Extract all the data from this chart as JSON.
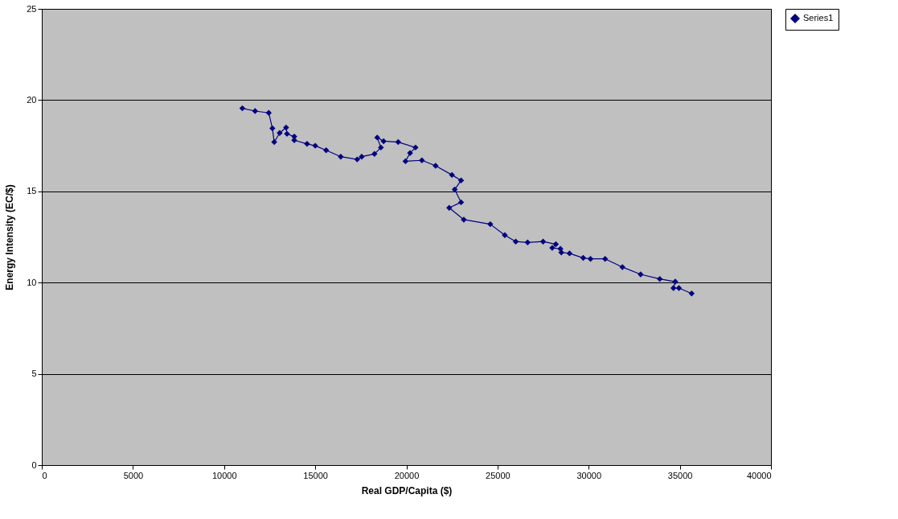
{
  "chart_data": {
    "type": "line",
    "xlabel": "Real GDP/Capita ($)",
    "ylabel": "Energy Intensity (EC/$)",
    "xlim": [
      0,
      40000
    ],
    "xticks": [
      0,
      5000,
      10000,
      15000,
      20000,
      25000,
      30000,
      35000,
      40000
    ],
    "ylim": [
      0,
      25
    ],
    "yticks": [
      0,
      5,
      10,
      15,
      20,
      25
    ],
    "grid": "y",
    "legend": "right",
    "marker": "diamond",
    "line_style": "solid",
    "series": [
      {
        "name": "Series1",
        "color": "#000080",
        "x": [
          11000,
          11700,
          12450,
          12650,
          12750,
          13050,
          13400,
          13450,
          13850,
          13850,
          14550,
          15000,
          15600,
          16400,
          17300,
          17550,
          18250,
          18600,
          18400,
          18750,
          19550,
          20500,
          20200,
          19950,
          20850,
          21600,
          22500,
          23000,
          22650,
          23000,
          22350,
          23150,
          24600,
          25400,
          26000,
          26650,
          27500,
          28200,
          28000,
          28450,
          28500,
          28950,
          29700,
          30100,
          30900,
          31850,
          32850,
          33900,
          34750,
          34650,
          34950,
          35650
        ],
        "values": [
          19.55,
          19.4,
          19.3,
          18.45,
          17.7,
          18.2,
          18.5,
          18.15,
          18.0,
          17.8,
          17.6,
          17.5,
          17.25,
          16.9,
          16.75,
          16.9,
          17.05,
          17.4,
          17.95,
          17.75,
          17.7,
          17.4,
          17.1,
          16.65,
          16.7,
          16.4,
          15.9,
          15.6,
          15.1,
          14.4,
          14.1,
          13.45,
          13.2,
          12.6,
          12.25,
          12.2,
          12.25,
          12.1,
          11.9,
          11.85,
          11.65,
          11.6,
          11.35,
          11.3,
          11.3,
          10.85,
          10.45,
          10.2,
          10.05,
          9.7,
          9.7,
          9.4
        ]
      }
    ]
  }
}
